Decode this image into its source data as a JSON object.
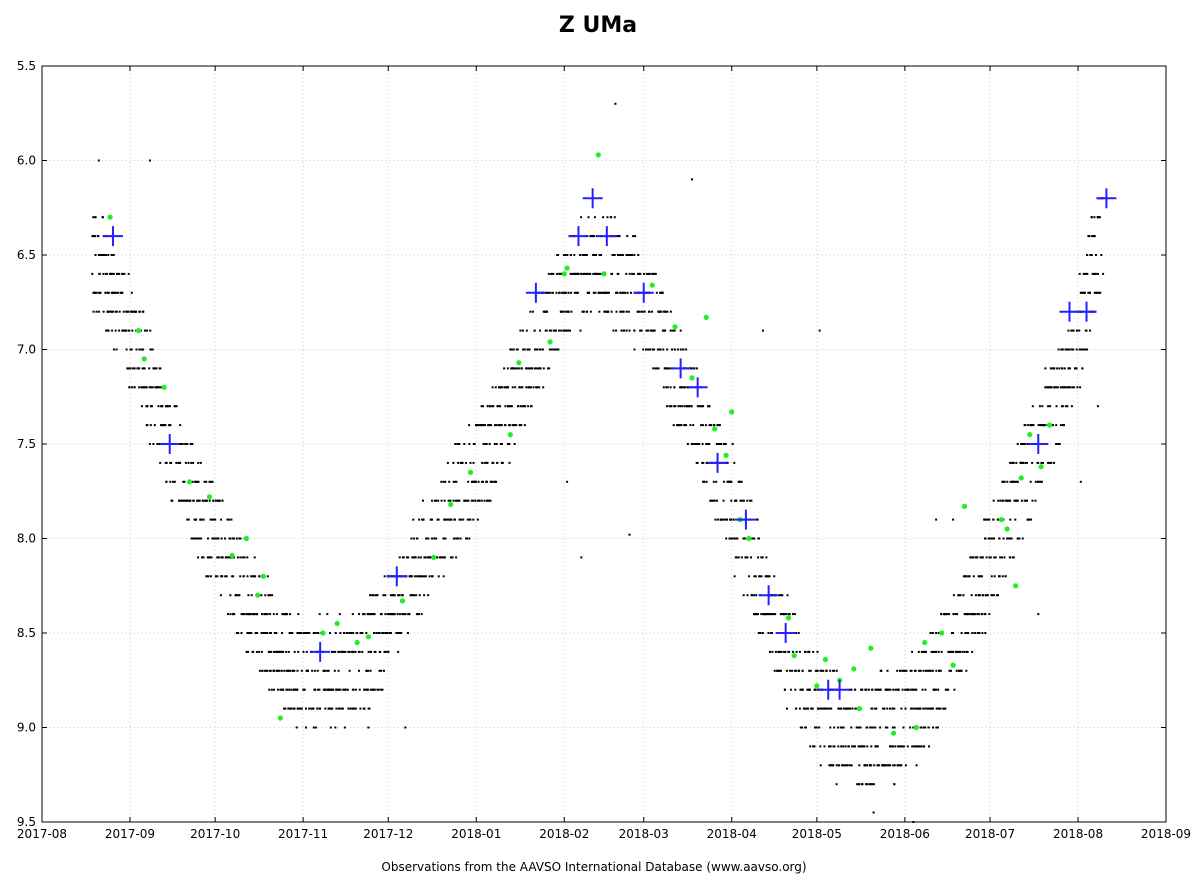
{
  "chart_data": {
    "type": "scatter",
    "title": "Z UMa",
    "xlabel": "Observations from the AAVSO International Database (www.aavso.org)",
    "ylabel": "",
    "xlim": [
      "2017-08-01",
      "2018-09-01"
    ],
    "ylim": [
      5.5,
      9.5
    ],
    "y_inverted": true,
    "grid": true,
    "x_ticks": [
      "2017-08",
      "2017-09",
      "2017-10",
      "2017-11",
      "2017-12",
      "2018-01",
      "2018-02",
      "2018-03",
      "2018-04",
      "2018-05",
      "2018-06",
      "2018-07",
      "2018-08",
      "2018-09"
    ],
    "y_ticks": [
      "5.5",
      "6.0",
      "6.5",
      "7.0",
      "7.5",
      "8.0",
      "8.5",
      "9.0",
      "9.5"
    ],
    "colors": {
      "visual": "#000000",
      "green": "#22ee22",
      "mean": "#2222ff",
      "grid": "#c8c8c8"
    },
    "series": [
      {
        "marker": "plus",
        "color": "#2222ff",
        "points": [
          [
            "2017-08-26",
            6.4
          ],
          [
            "2017-09-15",
            7.5
          ],
          [
            "2017-11-07",
            8.6
          ],
          [
            "2017-12-04",
            8.2
          ],
          [
            "2018-01-22",
            6.7
          ],
          [
            "2018-02-06",
            6.4
          ],
          [
            "2018-02-11",
            6.2
          ],
          [
            "2018-02-16",
            6.4
          ],
          [
            "2018-03-01",
            6.7
          ],
          [
            "2018-03-14",
            7.1
          ],
          [
            "2018-03-20",
            7.2
          ],
          [
            "2018-03-27",
            7.6
          ],
          [
            "2018-04-06",
            7.9
          ],
          [
            "2018-04-14",
            8.3
          ],
          [
            "2018-04-20",
            8.5
          ],
          [
            "2018-05-05",
            8.8
          ],
          [
            "2018-05-09",
            8.8
          ],
          [
            "2018-07-18",
            7.5
          ],
          [
            "2018-07-29",
            6.8
          ],
          [
            "2018-08-04",
            6.8
          ],
          [
            "2018-08-11",
            6.2
          ]
        ]
      },
      {
        "marker": "dot",
        "color": "#22ee22",
        "points": [
          [
            "2017-08-25",
            6.3
          ],
          [
            "2017-09-04",
            6.9
          ],
          [
            "2017-09-06",
            7.05
          ],
          [
            "2017-09-13",
            7.2
          ],
          [
            "2017-09-22",
            7.7
          ],
          [
            "2017-09-29",
            7.78
          ],
          [
            "2017-10-07",
            8.09
          ],
          [
            "2017-10-12",
            8.0
          ],
          [
            "2017-10-16",
            8.3
          ],
          [
            "2017-10-18",
            8.2
          ],
          [
            "2017-10-24",
            8.95
          ],
          [
            "2017-11-08",
            8.5
          ],
          [
            "2017-11-13",
            8.45
          ],
          [
            "2017-11-20",
            8.55
          ],
          [
            "2017-11-24",
            8.52
          ],
          [
            "2017-12-06",
            8.33
          ],
          [
            "2017-12-17",
            8.1
          ],
          [
            "2017-12-23",
            7.82
          ],
          [
            "2017-12-30",
            7.65
          ],
          [
            "2018-01-13",
            7.45
          ],
          [
            "2018-01-16",
            7.07
          ],
          [
            "2018-01-27",
            6.96
          ],
          [
            "2018-02-01",
            6.6
          ],
          [
            "2018-02-02",
            6.57
          ],
          [
            "2018-02-13",
            5.97
          ],
          [
            "2018-02-15",
            6.6
          ],
          [
            "2018-03-04",
            6.66
          ],
          [
            "2018-03-12",
            6.88
          ],
          [
            "2018-03-18",
            7.15
          ],
          [
            "2018-03-23",
            6.83
          ],
          [
            "2018-03-26",
            7.42
          ],
          [
            "2018-03-30",
            7.56
          ],
          [
            "2018-04-01",
            7.33
          ],
          [
            "2018-04-04",
            7.9
          ],
          [
            "2018-04-07",
            8.0
          ],
          [
            "2018-04-21",
            8.42
          ],
          [
            "2018-04-23",
            8.62
          ],
          [
            "2018-05-01",
            8.78
          ],
          [
            "2018-05-04",
            8.64
          ],
          [
            "2018-05-09",
            8.75
          ],
          [
            "2018-05-14",
            8.69
          ],
          [
            "2018-05-16",
            8.9
          ],
          [
            "2018-05-20",
            8.58
          ],
          [
            "2018-05-28",
            9.03
          ],
          [
            "2018-06-05",
            9.0
          ],
          [
            "2018-06-08",
            8.55
          ],
          [
            "2018-06-14",
            8.5
          ],
          [
            "2018-06-18",
            8.67
          ],
          [
            "2018-06-22",
            7.83
          ],
          [
            "2018-07-05",
            7.9
          ],
          [
            "2018-07-07",
            7.95
          ],
          [
            "2018-07-10",
            8.25
          ],
          [
            "2018-07-12",
            7.68
          ],
          [
            "2018-07-15",
            7.45
          ],
          [
            "2018-07-19",
            7.62
          ],
          [
            "2018-07-22",
            7.4
          ]
        ]
      },
      {
        "marker": "small-dot",
        "color": "#000000",
        "comment_free": true,
        "trend": [
          [
            "2017-08-19",
            6.5
          ],
          [
            "2017-08-24",
            6.65
          ],
          [
            "2017-08-30",
            6.85
          ],
          [
            "2017-09-05",
            7.05
          ],
          [
            "2017-09-10",
            7.3
          ],
          [
            "2017-09-15",
            7.5
          ],
          [
            "2017-09-20",
            7.65
          ],
          [
            "2017-09-26",
            7.85
          ],
          [
            "2017-10-03",
            8.05
          ],
          [
            "2017-10-10",
            8.25
          ],
          [
            "2017-10-17",
            8.45
          ],
          [
            "2017-10-24",
            8.62
          ],
          [
            "2017-10-31",
            8.72
          ],
          [
            "2017-11-07",
            8.68
          ],
          [
            "2017-11-14",
            8.7
          ],
          [
            "2017-11-21",
            8.68
          ],
          [
            "2017-11-28",
            8.52
          ],
          [
            "2017-12-05",
            8.3
          ],
          [
            "2017-12-12",
            8.12
          ],
          [
            "2017-12-19",
            7.95
          ],
          [
            "2017-12-26",
            7.78
          ],
          [
            "2018-01-02",
            7.62
          ],
          [
            "2018-01-09",
            7.42
          ],
          [
            "2018-01-16",
            7.18
          ],
          [
            "2018-01-23",
            6.95
          ],
          [
            "2018-01-30",
            6.75
          ],
          [
            "2018-02-06",
            6.6
          ],
          [
            "2018-02-13",
            6.55
          ],
          [
            "2018-02-20",
            6.62
          ],
          [
            "2018-02-27",
            6.72
          ],
          [
            "2018-03-06",
            6.88
          ],
          [
            "2018-03-13",
            7.15
          ],
          [
            "2018-03-20",
            7.38
          ],
          [
            "2018-03-27",
            7.62
          ],
          [
            "2018-04-03",
            7.9
          ],
          [
            "2018-04-10",
            8.2
          ],
          [
            "2018-04-17",
            8.48
          ],
          [
            "2018-04-24",
            8.7
          ],
          [
            "2018-05-01",
            8.88
          ],
          [
            "2018-05-08",
            9.0
          ],
          [
            "2018-05-15",
            9.05
          ],
          [
            "2018-05-22",
            9.02
          ],
          [
            "2018-05-29",
            8.98
          ],
          [
            "2018-06-05",
            8.9
          ],
          [
            "2018-06-12",
            8.75
          ],
          [
            "2018-06-19",
            8.55
          ],
          [
            "2018-06-26",
            8.3
          ],
          [
            "2018-07-03",
            8.05
          ],
          [
            "2018-07-10",
            7.8
          ],
          [
            "2018-07-17",
            7.55
          ],
          [
            "2018-07-24",
            7.3
          ],
          [
            "2018-07-31",
            7.0
          ],
          [
            "2018-08-05",
            6.65
          ],
          [
            "2018-08-10",
            6.35
          ]
        ],
        "outliers": [
          [
            "2017-08-21",
            6.0
          ],
          [
            "2017-09-08",
            6.0
          ],
          [
            "2017-11-24",
            9.0
          ],
          [
            "2017-12-07",
            9.0
          ],
          [
            "2018-02-19",
            5.7
          ],
          [
            "2018-03-18",
            6.1
          ],
          [
            "2018-02-07",
            8.1
          ],
          [
            "2018-02-24",
            7.98
          ],
          [
            "2018-04-12",
            6.9
          ],
          [
            "2018-05-02",
            6.9
          ],
          [
            "2018-06-12",
            7.9
          ],
          [
            "2018-06-18",
            7.9
          ],
          [
            "2018-08-08",
            7.3
          ],
          [
            "2018-08-02",
            7.7
          ],
          [
            "2018-05-21",
            9.45
          ],
          [
            "2018-06-04",
            9.5
          ],
          [
            "2017-11-02",
            9.0
          ],
          [
            "2018-02-02",
            7.7
          ],
          [
            "2018-07-18",
            8.4
          ],
          [
            "2018-04-02",
            8.2
          ]
        ]
      }
    ]
  }
}
